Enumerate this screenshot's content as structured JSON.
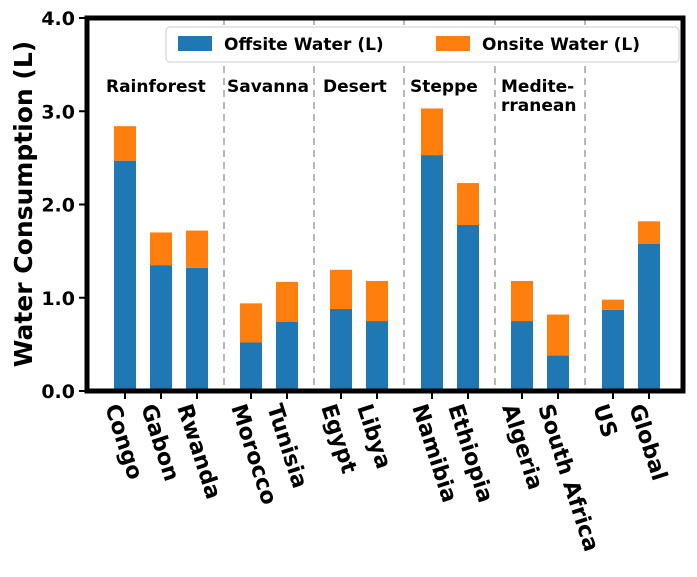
{
  "chart_data": {
    "type": "bar",
    "stacked": true,
    "title": "",
    "xlabel": "",
    "ylabel": "Water Consumption (L)",
    "ylim": [
      0,
      4.0
    ],
    "yticks": [
      "0.0",
      "1.0",
      "2.0",
      "3.0",
      "4.0"
    ],
    "grid": false,
    "legend_position": "top-right",
    "categories": [
      "Congo",
      "Gabon",
      "Rwanda",
      "Morocco",
      "Tunisia",
      "Egypt",
      "Libya",
      "Namibia",
      "Ethiopia",
      "Algeria",
      "South Africa",
      "US",
      "Global"
    ],
    "series": [
      {
        "name": "Offsite Water (L)",
        "color": "#1f77b4",
        "values": [
          2.47,
          1.35,
          1.32,
          0.52,
          0.74,
          0.88,
          0.75,
          2.53,
          1.78,
          0.75,
          0.38,
          0.87,
          1.58
        ]
      },
      {
        "name": "Onsite Water (L)",
        "color": "#ff7f0e",
        "values": [
          0.37,
          0.35,
          0.4,
          0.42,
          0.43,
          0.42,
          0.43,
          0.5,
          0.45,
          0.43,
          0.44,
          0.11,
          0.24
        ]
      }
    ],
    "climate_groups": [
      {
        "lines": [
          "Rainforest"
        ]
      },
      {
        "lines": [
          "Savanna"
        ]
      },
      {
        "lines": [
          "Desert"
        ]
      },
      {
        "lines": [
          "Steppe"
        ]
      },
      {
        "lines": [
          "Medite-",
          "rranean"
        ]
      }
    ]
  }
}
